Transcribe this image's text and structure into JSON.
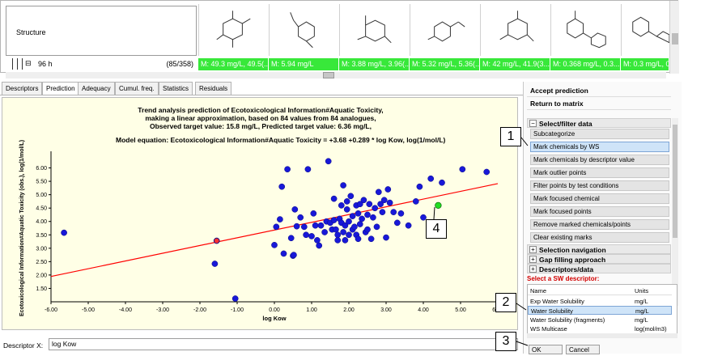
{
  "structure_strip": {
    "label": "Structure",
    "hours_label": "96 h",
    "hours_count": "(85/358)",
    "cells": [
      "M: 49.3 mg/L, 49.5(...",
      "M: 5.94 mg/L",
      "M: 3.88 mg/L, 3.96(...",
      "M: 5.32 mg/L, 5.36(...",
      "M: 42 mg/L, 41.9(3...",
      "M: 0.368 mg/L, 0.3...",
      "M: 0.3 mg/L, 0.3..."
    ]
  },
  "tabs": [
    "Descriptors",
    "Prediction",
    "Adequacy",
    "Cumul. freq.",
    "Statistics",
    "Residuals"
  ],
  "chart": {
    "title_lines": [
      "Trend analysis prediction of Ecotoxicological Information#Aquatic Toxicity,",
      "making a linear approximation, based on 84 values from 84 analogues,",
      "Observed target value: 15.8 mg/L, Predicted target value: 6.36 mg/L,"
    ],
    "model_equation": "Model equation:   Ecotoxicological Information#Aquatic Toxicity = +3.68 +0.289 * log Kow, log(1/mol/L)"
  },
  "chart_data": {
    "type": "scatter",
    "xlabel": "log Kow",
    "ylabel": "Ecotoxicological Information#Aquatic Toxicity (obs.), log(1/mol/L)",
    "x_ticks": [
      "-6.00",
      "-5.00",
      "-4.00",
      "-3.00",
      "-2.00",
      "-1.00",
      "0.00",
      "1.00",
      "2.00",
      "3.00",
      "4.00",
      "5.00",
      "6.00"
    ],
    "y_ticks": [
      "1.50",
      "2.00",
      "2.50",
      "3.00",
      "3.50",
      "4.00",
      "4.50",
      "5.00",
      "5.50",
      "6.00"
    ],
    "xlim": [
      -6,
      6
    ],
    "ylim": [
      1,
      6.5
    ],
    "trend_line": {
      "slope": 0.289,
      "intercept": 3.68,
      "color": "#ff0000"
    },
    "target_point": {
      "x": 4.4,
      "y": 4.6,
      "color": "#22dd22"
    },
    "highlight_point": {
      "x": -1.55,
      "y": 3.28,
      "color": "#ff3030"
    },
    "point_color": "#1818d8",
    "points": [
      [
        -5.65,
        3.58
      ],
      [
        -1.6,
        2.42
      ],
      [
        -1.55,
        3.28
      ],
      [
        -1.05,
        1.12
      ],
      [
        0.0,
        3.12
      ],
      [
        0.05,
        3.8
      ],
      [
        0.15,
        4.08
      ],
      [
        0.2,
        5.3
      ],
      [
        0.25,
        2.8
      ],
      [
        0.35,
        5.95
      ],
      [
        0.45,
        3.38
      ],
      [
        0.5,
        2.72
      ],
      [
        0.52,
        2.75
      ],
      [
        0.6,
        3.82
      ],
      [
        0.7,
        4.15
      ],
      [
        0.8,
        3.8
      ],
      [
        0.85,
        3.5
      ],
      [
        0.9,
        5.95
      ],
      [
        1.0,
        3.45
      ],
      [
        1.05,
        4.3
      ],
      [
        1.1,
        3.85
      ],
      [
        1.2,
        3.1
      ],
      [
        1.25,
        3.85
      ],
      [
        1.35,
        3.6
      ],
      [
        1.4,
        4.0
      ],
      [
        1.45,
        6.25
      ],
      [
        1.5,
        3.95
      ],
      [
        1.55,
        3.7
      ],
      [
        1.6,
        4.85
      ],
      [
        1.6,
        4.05
      ],
      [
        1.65,
        3.7
      ],
      [
        1.7,
        3.3
      ],
      [
        1.7,
        3.5
      ],
      [
        1.75,
        4.1
      ],
      [
        1.8,
        4.6
      ],
      [
        1.8,
        3.95
      ],
      [
        1.85,
        3.6
      ],
      [
        1.85,
        5.35
      ],
      [
        1.9,
        3.3
      ],
      [
        1.9,
        3.85
      ],
      [
        1.95,
        4.45
      ],
      [
        1.95,
        4.75
      ],
      [
        2.0,
        3.5
      ],
      [
        2.0,
        4.0
      ],
      [
        2.05,
        4.95
      ],
      [
        2.1,
        3.7
      ],
      [
        2.1,
        4.2
      ],
      [
        2.15,
        3.8
      ],
      [
        2.2,
        3.5
      ],
      [
        2.2,
        4.6
      ],
      [
        2.25,
        3.35
      ],
      [
        2.25,
        4.3
      ],
      [
        2.3,
        3.9
      ],
      [
        2.3,
        4.65
      ],
      [
        2.35,
        4.1
      ],
      [
        2.4,
        4.8
      ],
      [
        2.45,
        3.6
      ],
      [
        2.5,
        4.25
      ],
      [
        2.5,
        3.7
      ],
      [
        2.55,
        4.65
      ],
      [
        2.6,
        3.35
      ],
      [
        2.65,
        4.15
      ],
      [
        2.7,
        4.5
      ],
      [
        2.75,
        3.8
      ],
      [
        2.8,
        5.1
      ],
      [
        2.85,
        4.65
      ],
      [
        2.9,
        4.35
      ],
      [
        2.95,
        4.8
      ],
      [
        3.0,
        3.4
      ],
      [
        3.05,
        5.2
      ],
      [
        3.1,
        4.7
      ],
      [
        3.2,
        4.35
      ],
      [
        3.3,
        3.95
      ],
      [
        3.4,
        4.3
      ],
      [
        3.6,
        3.85
      ],
      [
        3.8,
        4.75
      ],
      [
        3.9,
        5.3
      ],
      [
        4.0,
        4.15
      ],
      [
        4.2,
        5.6
      ],
      [
        4.5,
        5.45
      ],
      [
        5.05,
        5.95
      ],
      [
        5.7,
        5.85
      ],
      [
        0.55,
        4.45
      ],
      [
        1.15,
        3.3
      ]
    ]
  },
  "descriptor_x": {
    "label": "Descriptor X:",
    "value": "log Kow"
  },
  "right_panel": {
    "accept": "Accept prediction",
    "return": "Return to matrix",
    "section_select": "Select/filter data",
    "menu_items": [
      "Subcategorize",
      "Mark chemicals by WS",
      "Mark chemicals by descriptor value",
      "Mark outlier points",
      "Filter points by test conditions",
      "Mark focused chemical",
      "Mark focused points",
      "Remove marked chemicals/points",
      "Clear existing marks"
    ],
    "section_selection_nav": "Selection navigation",
    "section_gap": "Gap filling approach",
    "section_desc": "Descriptors/data",
    "sw_label": "Select a SW descriptor:",
    "sw_header": {
      "name": "Name",
      "units": "Units"
    },
    "sw_rows": [
      {
        "name": "Exp Water Solubility",
        "units": "mg/L"
      },
      {
        "name": "Water Solubility",
        "units": "mg/L"
      },
      {
        "name": "Water Solubility (fragments)",
        "units": "mg/L"
      },
      {
        "name": "WS Multicase",
        "units": "log(mol/m3)"
      }
    ],
    "ok": "OK",
    "cancel": "Cancel"
  },
  "callouts": [
    "1",
    "2",
    "3",
    "4"
  ]
}
